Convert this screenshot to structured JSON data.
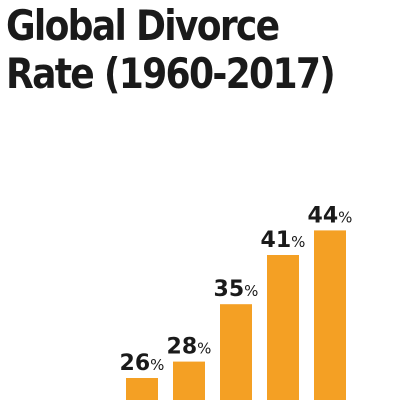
{
  "chart_data": {
    "type": "bar",
    "title_lines": [
      "Global Divorce",
      "Rate (1960-2017)"
    ],
    "categories": [
      "",
      "",
      "",
      "",
      ""
    ],
    "values": [
      26,
      28,
      35,
      41,
      44
    ],
    "value_labels": [
      "26",
      "28",
      "35",
      "41",
      "44"
    ],
    "unit": "%",
    "bar_color": "#f4a024",
    "grid": false,
    "legend": "none"
  }
}
